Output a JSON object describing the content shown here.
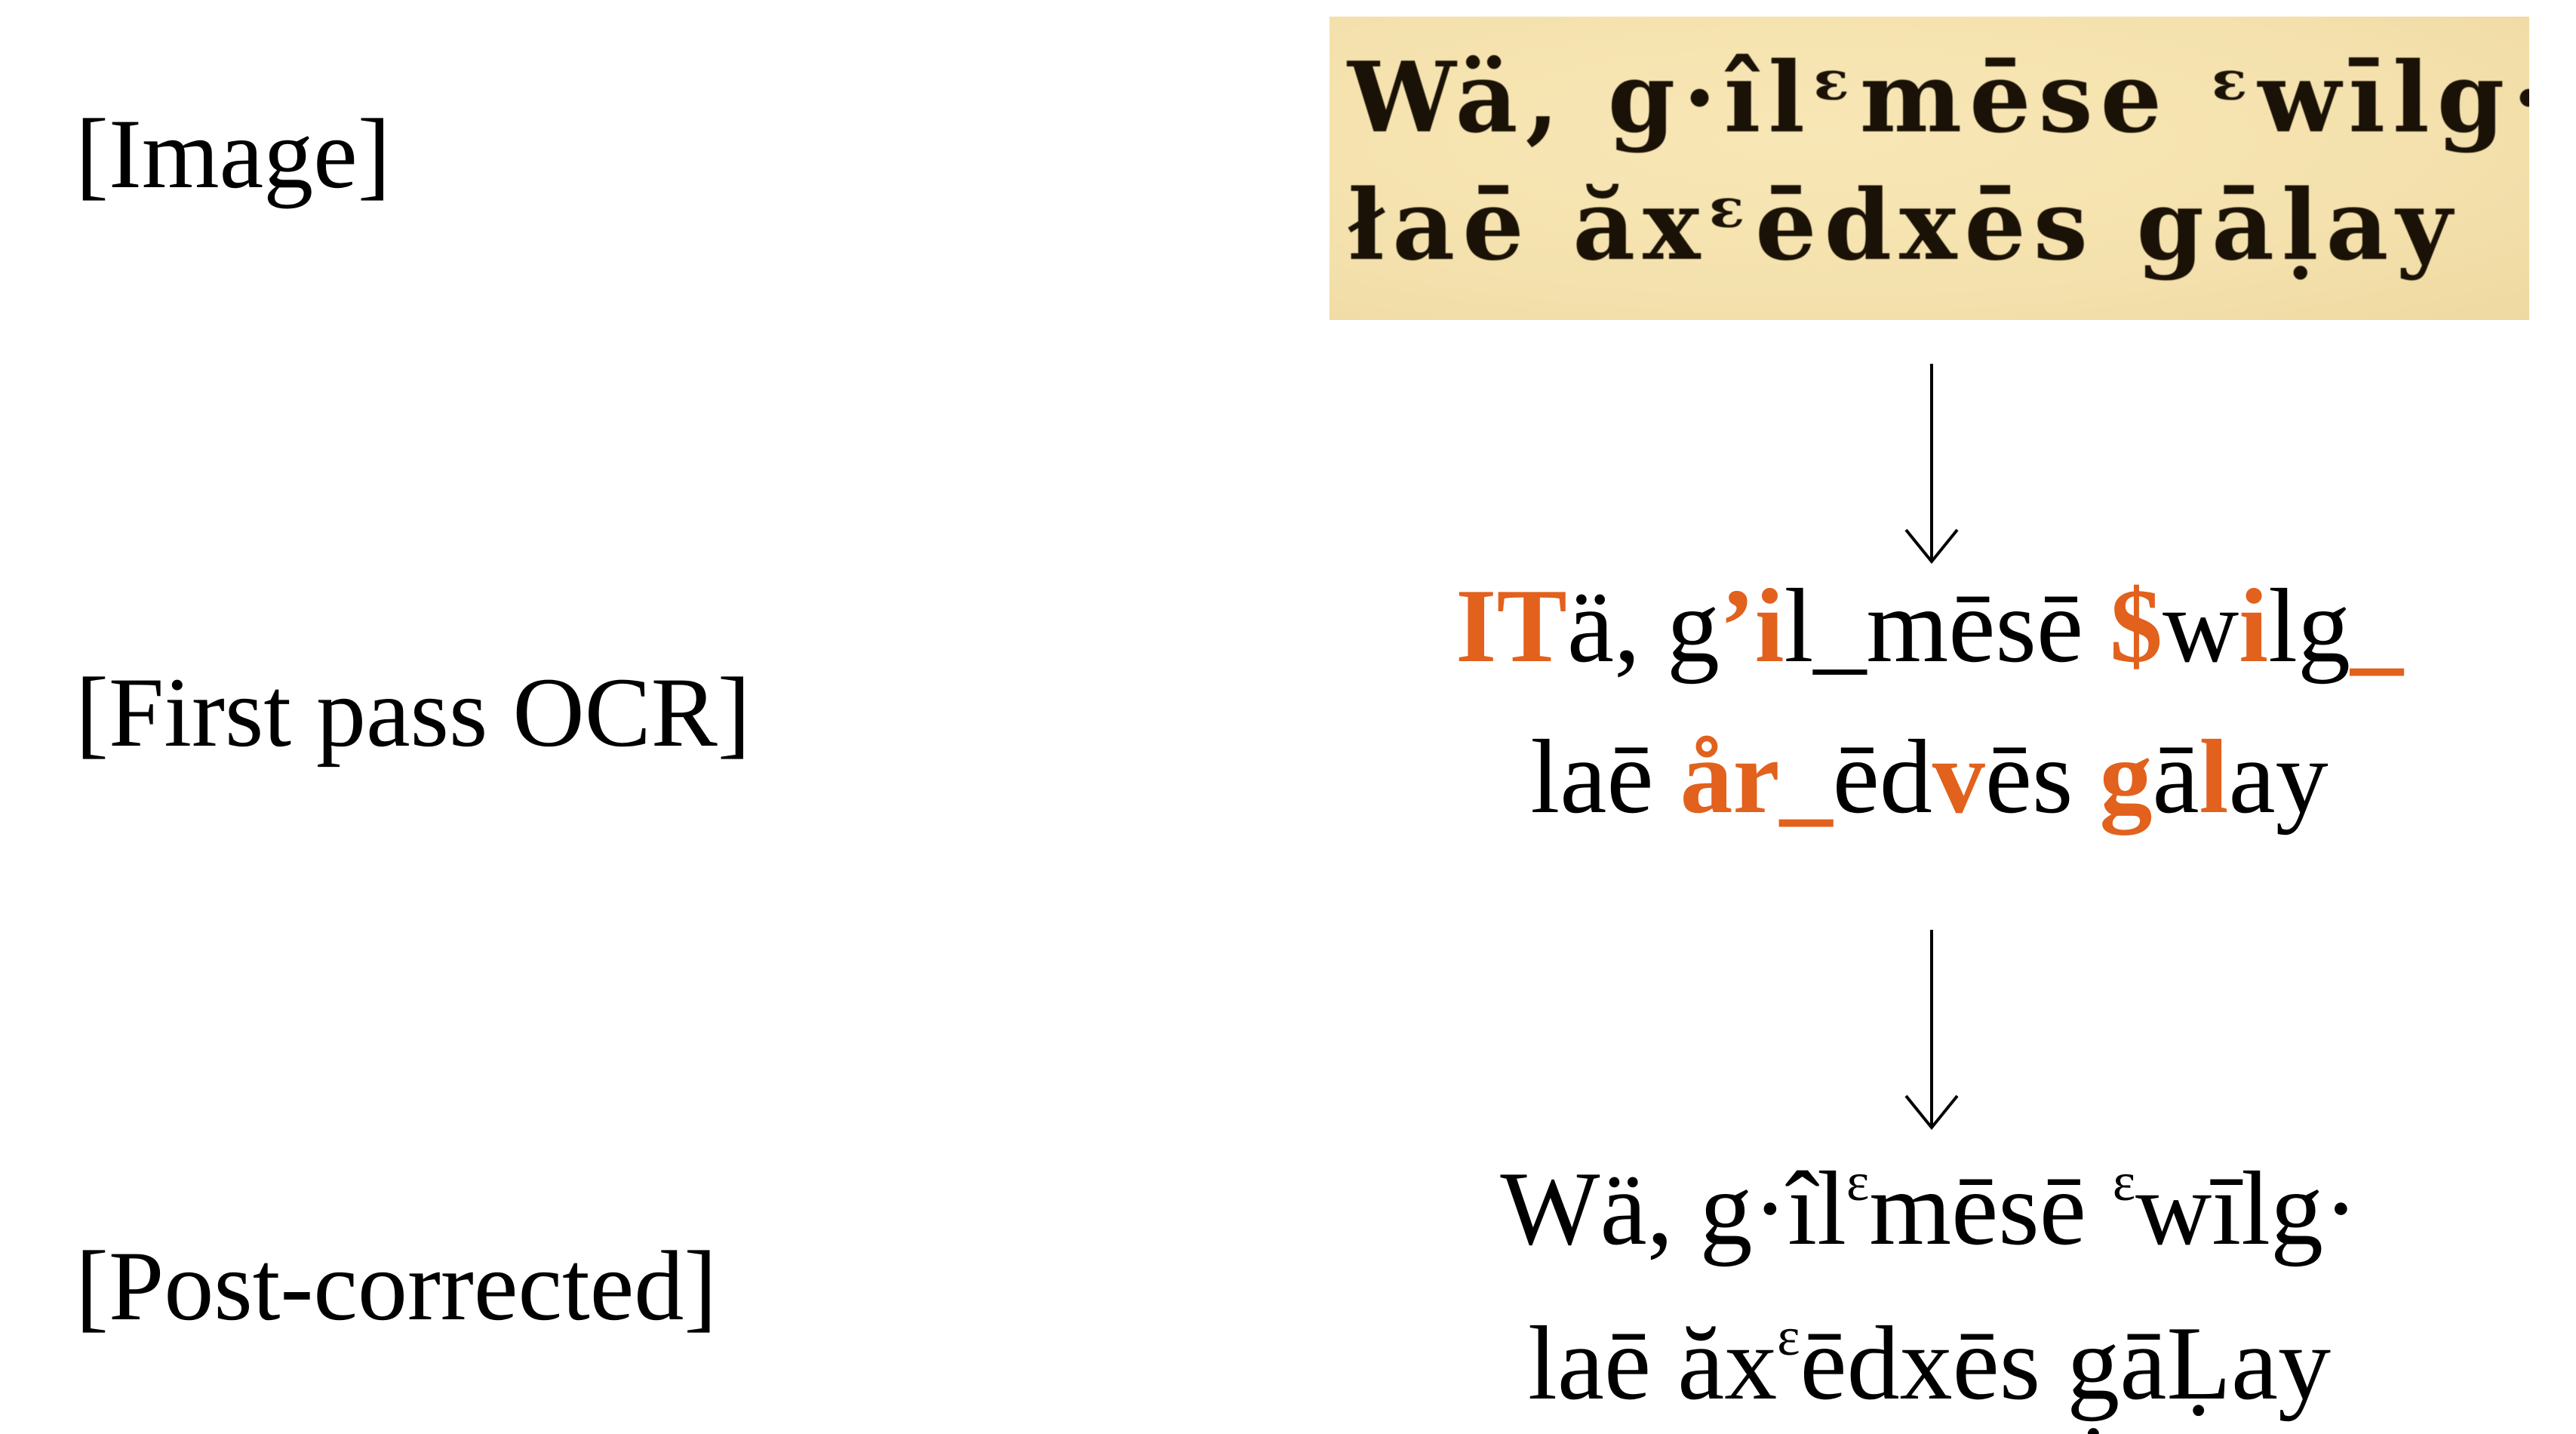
{
  "labels": {
    "image": "[Image]",
    "first_pass": "[First pass OCR]",
    "post_corrected": "[Post-corrected]"
  },
  "scan": {
    "line1": "Wä, g·îlᵋmēse ᵋwīlg·",
    "line2": "łaē ăxᵋēdxēs gāḷay"
  },
  "ocr": {
    "line1": [
      {
        "t": "IT",
        "err": true
      },
      {
        "t": "ä, g",
        "err": false
      },
      {
        "t": "’i",
        "err": true
      },
      {
        "t": "l_mēsē ",
        "err": false
      },
      {
        "t": "$",
        "err": true
      },
      {
        "t": "w",
        "err": false
      },
      {
        "t": "i",
        "err": true
      },
      {
        "t": "lg",
        "err": false
      },
      {
        "t": "_",
        "err": true
      }
    ],
    "line2": [
      {
        "t": "laē ",
        "err": false
      },
      {
        "t": "år_",
        "err": true
      },
      {
        "t": "ēd",
        "err": false
      },
      {
        "t": "v",
        "err": true
      },
      {
        "t": "ēs ",
        "err": false
      },
      {
        "t": "g",
        "err": true
      },
      {
        "t": "ā",
        "err": false
      },
      {
        "t": "l",
        "err": true
      },
      {
        "t": "ay",
        "err": false
      }
    ]
  },
  "post": {
    "line1_a": "Wä, g·îl",
    "line1_sup1": "ɛ",
    "line1_b": "mēsē ",
    "line1_sup2": "ɛ",
    "line1_c": "wīlg·",
    "line2_a": "laē ăx",
    "line2_sup": "ɛ",
    "line2_b": "ēdxēs g̣āḶay"
  },
  "colors": {
    "error_highlight": "#e1611d",
    "scan_background": "#f4e1ad"
  }
}
